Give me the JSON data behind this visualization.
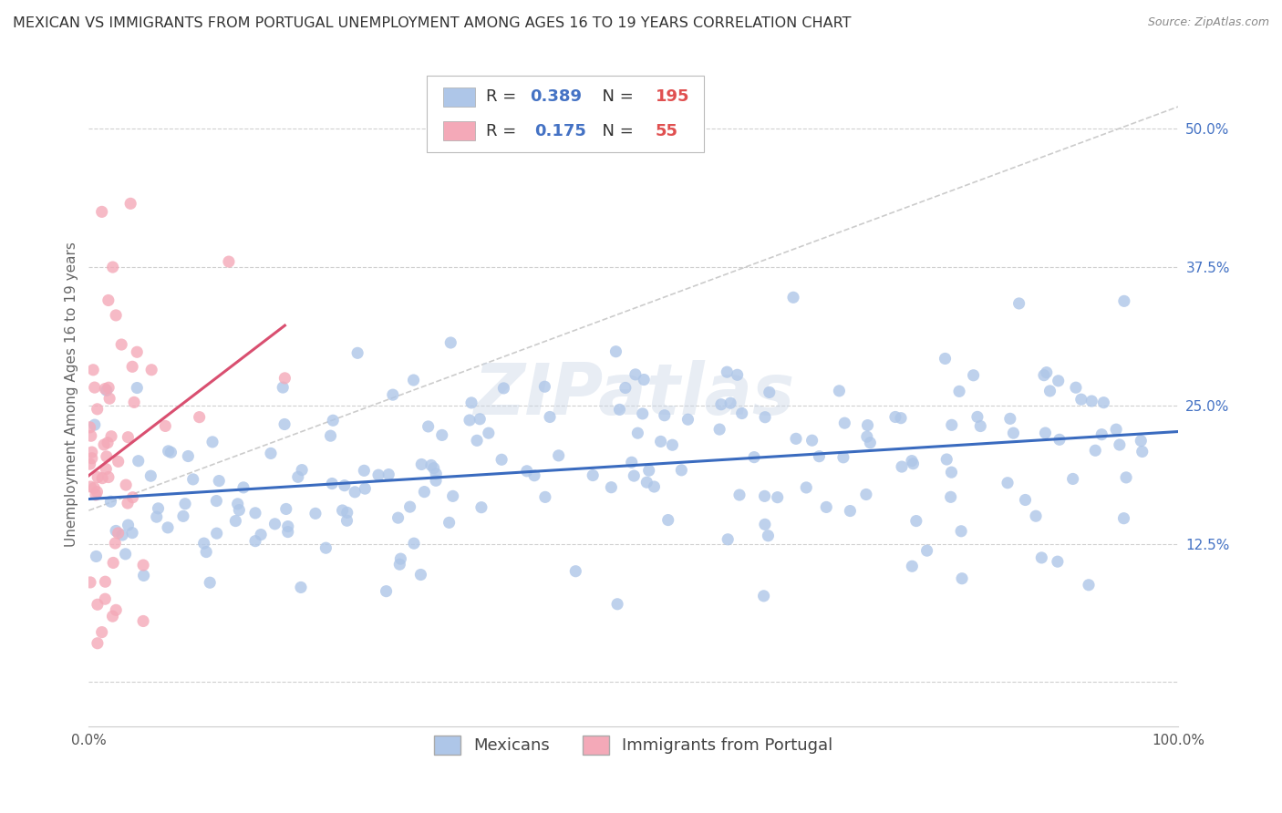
{
  "title": "MEXICAN VS IMMIGRANTS FROM PORTUGAL UNEMPLOYMENT AMONG AGES 16 TO 19 YEARS CORRELATION CHART",
  "source": "Source: ZipAtlas.com",
  "ylabel": "Unemployment Among Ages 16 to 19 years",
  "xlim": [
    0.0,
    1.0
  ],
  "ylim": [
    -0.04,
    0.56
  ],
  "yticks": [
    0.0,
    0.125,
    0.25,
    0.375,
    0.5
  ],
  "ytick_labels": [
    "",
    "12.5%",
    "25.0%",
    "37.5%",
    "50.0%"
  ],
  "xticks": [
    0.0,
    0.125,
    0.25,
    0.375,
    0.5,
    0.625,
    0.75,
    0.875,
    1.0
  ],
  "xtick_labels": [
    "0.0%",
    "",
    "",
    "",
    "",
    "",
    "",
    "",
    "100.0%"
  ],
  "mexican_R": 0.389,
  "mexican_N": 195,
  "portugal_R": 0.175,
  "portugal_N": 55,
  "mexican_color": "#aec6e8",
  "portugal_color": "#f4a9b8",
  "mexican_line_color": "#3a6bbf",
  "portugal_line_color": "#d94f70",
  "diag_line_color": "#cccccc",
  "watermark": "ZIPatlas",
  "legend_x_label": "Mexicans",
  "legend_p_label": "Immigrants from Portugal",
  "title_fontsize": 11.5,
  "label_fontsize": 11,
  "tick_fontsize": 11,
  "legend_fontsize": 13,
  "r_color": "#4472c4",
  "n_color": "#e05050"
}
